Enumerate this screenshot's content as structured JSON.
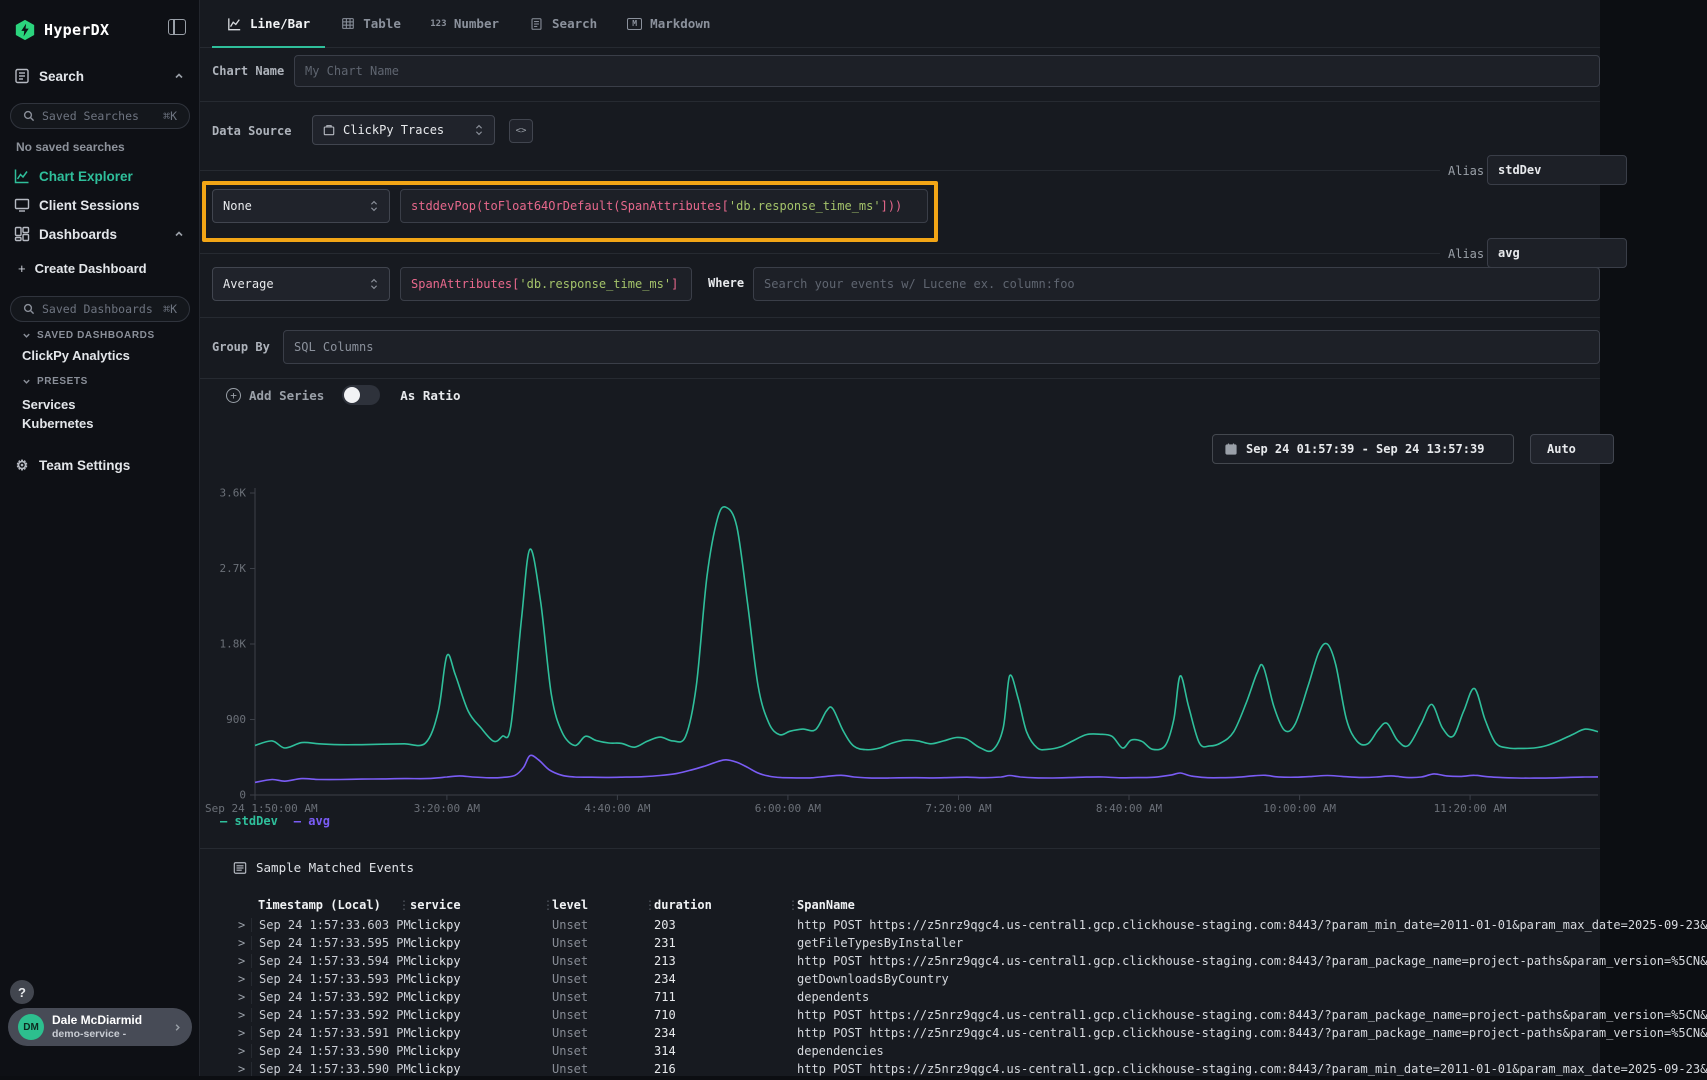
{
  "sidebar": {
    "logo": "HyperDX",
    "search_item": "Search",
    "saved_searches_placeholder": "Saved Searches",
    "shortcut": "⌘K",
    "no_saved_searches": "No saved searches",
    "chart_explorer": "Chart Explorer",
    "client_sessions": "Client Sessions",
    "dashboards": "Dashboards",
    "create_dashboard": "Create Dashboard",
    "saved_dashboards_placeholder": "Saved Dashboards",
    "saved_dashboards_section": "SAVED DASHBOARDS",
    "dashboards_list": [
      "ClickPy Analytics"
    ],
    "presets_section": "PRESETS",
    "presets_list": [
      "Services",
      "Kubernetes"
    ],
    "team_settings": "Team Settings",
    "help_icon": "?",
    "user": {
      "initials": "DM",
      "name": "Dale McDiarmid",
      "org": "demo-service -"
    }
  },
  "icons": {
    "plus": "+",
    "number_tab": "123",
    "markdown_tab": "M",
    "gear": "⚙"
  },
  "tabs": [
    {
      "label": "Line/Bar",
      "active": true
    },
    {
      "label": "Table",
      "active": false
    },
    {
      "label": "Number",
      "active": false
    },
    {
      "label": "Search",
      "active": false
    },
    {
      "label": "Markdown",
      "active": false
    }
  ],
  "editor": {
    "chart_name_label": "Chart Name",
    "chart_name_placeholder": "My Chart Name",
    "data_source_label": "Data Source",
    "data_source_value": "ClickPy Traces",
    "series": [
      {
        "alias_label": "Alias",
        "alias": "stdDev",
        "aggregation": "None",
        "expr_pre": "stddevPop(toFloat64OrDefault(SpanAttributes[",
        "expr_str": "'db.response_time_ms'",
        "expr_post": "]))"
      },
      {
        "alias_label": "Alias",
        "alias": "avg",
        "aggregation": "Average",
        "expr_pre": "SpanAttributes[",
        "expr_str": "'db.response_time_ms'",
        "expr_post": "]",
        "where_label": "Where",
        "where_placeholder": "Search your events w/ Lucene ex. column:foo"
      }
    ],
    "group_by_label": "Group By",
    "group_by_placeholder": "SQL Columns",
    "add_series": "Add Series",
    "as_ratio": "As Ratio",
    "time_range": "Sep 24 01:57:39 - Sep 24 13:57:39",
    "auto_button": "Auto"
  },
  "chart_data": {
    "type": "line",
    "title": "",
    "xlabel": "",
    "ylabel": "",
    "ylim": [
      0,
      3600
    ],
    "grid": false,
    "legend_position": "bottom-left",
    "x_unit": "minutes after Sep 24 1:50:00 AM",
    "x_max": 630,
    "y_ticks": [
      {
        "v": 0,
        "label": "0"
      },
      {
        "v": 900,
        "label": "900"
      },
      {
        "v": 1800,
        "label": "1.8K"
      },
      {
        "v": 2700,
        "label": "2.7K"
      },
      {
        "v": 3600,
        "label": "3.6K"
      }
    ],
    "x_ticks": [
      {
        "min": 0,
        "label": "Sep 24 1:50:00 AM"
      },
      {
        "min": 90,
        "label": "3:20:00 AM"
      },
      {
        "min": 170,
        "label": "4:40:00 AM"
      },
      {
        "min": 250,
        "label": "6:00:00 AM"
      },
      {
        "min": 330,
        "label": "7:20:00 AM"
      },
      {
        "min": 410,
        "label": "8:40:00 AM"
      },
      {
        "min": 490,
        "label": "10:00:00 AM"
      },
      {
        "min": 570,
        "label": "11:20:00 AM"
      }
    ],
    "series": [
      {
        "name": "stdDev",
        "color": "#2fbf9b",
        "points": [
          [
            0,
            590
          ],
          [
            8,
            645
          ],
          [
            14,
            560
          ],
          [
            22,
            625
          ],
          [
            30,
            610
          ],
          [
            40,
            600
          ],
          [
            50,
            600
          ],
          [
            60,
            605
          ],
          [
            70,
            610
          ],
          [
            80,
            620
          ],
          [
            86,
            1000
          ],
          [
            90,
            1660
          ],
          [
            94,
            1430
          ],
          [
            100,
            1000
          ],
          [
            106,
            800
          ],
          [
            112,
            640
          ],
          [
            116,
            700
          ],
          [
            120,
            820
          ],
          [
            125,
            2100
          ],
          [
            129,
            2930
          ],
          [
            134,
            2300
          ],
          [
            139,
            1200
          ],
          [
            144,
            750
          ],
          [
            150,
            590
          ],
          [
            155,
            700
          ],
          [
            160,
            650
          ],
          [
            166,
            620
          ],
          [
            172,
            615
          ],
          [
            178,
            570
          ],
          [
            184,
            640
          ],
          [
            190,
            690
          ],
          [
            196,
            645
          ],
          [
            202,
            700
          ],
          [
            207,
            1300
          ],
          [
            212,
            2600
          ],
          [
            217,
            3300
          ],
          [
            221,
            3430
          ],
          [
            226,
            3200
          ],
          [
            231,
            2300
          ],
          [
            236,
            1300
          ],
          [
            241,
            860
          ],
          [
            246,
            720
          ],
          [
            251,
            760
          ],
          [
            257,
            785
          ],
          [
            263,
            780
          ],
          [
            268,
            1000
          ],
          [
            271,
            1030
          ],
          [
            276,
            760
          ],
          [
            281,
            580
          ],
          [
            287,
            540
          ],
          [
            293,
            560
          ],
          [
            299,
            620
          ],
          [
            305,
            655
          ],
          [
            311,
            645
          ],
          [
            317,
            610
          ],
          [
            323,
            645
          ],
          [
            329,
            685
          ],
          [
            334,
            665
          ],
          [
            340,
            565
          ],
          [
            346,
            535
          ],
          [
            351,
            800
          ],
          [
            354,
            1420
          ],
          [
            358,
            1150
          ],
          [
            362,
            750
          ],
          [
            367,
            560
          ],
          [
            372,
            545
          ],
          [
            378,
            575
          ],
          [
            384,
            650
          ],
          [
            390,
            720
          ],
          [
            396,
            725
          ],
          [
            402,
            700
          ],
          [
            407,
            560
          ],
          [
            411,
            655
          ],
          [
            416,
            640
          ],
          [
            421,
            545
          ],
          [
            427,
            590
          ],
          [
            431,
            900
          ],
          [
            434,
            1420
          ],
          [
            438,
            1050
          ],
          [
            443,
            620
          ],
          [
            448,
            585
          ],
          [
            453,
            620
          ],
          [
            459,
            750
          ],
          [
            465,
            1100
          ],
          [
            470,
            1450
          ],
          [
            473,
            1530
          ],
          [
            478,
            1050
          ],
          [
            483,
            770
          ],
          [
            488,
            850
          ],
          [
            494,
            1300
          ],
          [
            499,
            1700
          ],
          [
            503,
            1800
          ],
          [
            507,
            1550
          ],
          [
            512,
            900
          ],
          [
            517,
            640
          ],
          [
            522,
            610
          ],
          [
            527,
            780
          ],
          [
            531,
            855
          ],
          [
            536,
            650
          ],
          [
            541,
            590
          ],
          [
            547,
            850
          ],
          [
            552,
            1080
          ],
          [
            557,
            800
          ],
          [
            562,
            700
          ],
          [
            567,
            1000
          ],
          [
            572,
            1270
          ],
          [
            577,
            900
          ],
          [
            582,
            620
          ],
          [
            588,
            560
          ],
          [
            594,
            555
          ],
          [
            600,
            560
          ],
          [
            606,
            590
          ],
          [
            612,
            650
          ],
          [
            618,
            720
          ],
          [
            624,
            785
          ],
          [
            630,
            755
          ]
        ]
      },
      {
        "name": "avg",
        "color": "#7a5cf5",
        "points": [
          [
            0,
            150
          ],
          [
            8,
            185
          ],
          [
            14,
            165
          ],
          [
            22,
            195
          ],
          [
            30,
            185
          ],
          [
            40,
            185
          ],
          [
            50,
            190
          ],
          [
            60,
            192
          ],
          [
            70,
            196
          ],
          [
            80,
            195
          ],
          [
            86,
            205
          ],
          [
            90,
            215
          ],
          [
            96,
            228
          ],
          [
            102,
            215
          ],
          [
            110,
            205
          ],
          [
            116,
            210
          ],
          [
            122,
            235
          ],
          [
            126,
            330
          ],
          [
            129,
            470
          ],
          [
            133,
            420
          ],
          [
            138,
            300
          ],
          [
            144,
            235
          ],
          [
            150,
            215
          ],
          [
            158,
            212
          ],
          [
            166,
            210
          ],
          [
            174,
            213
          ],
          [
            182,
            218
          ],
          [
            190,
            232
          ],
          [
            198,
            258
          ],
          [
            205,
            300
          ],
          [
            211,
            345
          ],
          [
            217,
            398
          ],
          [
            221,
            420
          ],
          [
            226,
            390
          ],
          [
            231,
            330
          ],
          [
            236,
            262
          ],
          [
            241,
            225
          ],
          [
            247,
            208
          ],
          [
            254,
            204
          ],
          [
            261,
            205
          ],
          [
            268,
            222
          ],
          [
            275,
            235
          ],
          [
            281,
            215
          ],
          [
            288,
            204
          ],
          [
            295,
            202
          ],
          [
            302,
            205
          ],
          [
            310,
            206
          ],
          [
            318,
            204
          ],
          [
            326,
            208
          ],
          [
            334,
            212
          ],
          [
            342,
            206
          ],
          [
            350,
            215
          ],
          [
            354,
            232
          ],
          [
            359,
            215
          ],
          [
            366,
            205
          ],
          [
            374,
            203
          ],
          [
            382,
            207
          ],
          [
            390,
            213
          ],
          [
            398,
            214
          ],
          [
            406,
            205
          ],
          [
            414,
            208
          ],
          [
            422,
            212
          ],
          [
            430,
            240
          ],
          [
            434,
            262
          ],
          [
            439,
            228
          ],
          [
            446,
            208
          ],
          [
            453,
            206
          ],
          [
            461,
            212
          ],
          [
            469,
            230
          ],
          [
            474,
            235
          ],
          [
            480,
            216
          ],
          [
            488,
            212
          ],
          [
            496,
            222
          ],
          [
            503,
            232
          ],
          [
            510,
            222
          ],
          [
            518,
            210
          ],
          [
            526,
            214
          ],
          [
            533,
            228
          ],
          [
            540,
            210
          ],
          [
            547,
            214
          ],
          [
            553,
            252
          ],
          [
            559,
            228
          ],
          [
            566,
            222
          ],
          [
            572,
            235
          ],
          [
            578,
            218
          ],
          [
            585,
            208
          ],
          [
            592,
            203
          ],
          [
            600,
            201
          ],
          [
            608,
            204
          ],
          [
            616,
            210
          ],
          [
            624,
            214
          ],
          [
            630,
            216
          ]
        ]
      }
    ]
  },
  "events": {
    "title": "Sample Matched Events",
    "expand_icon": ">",
    "col_handle": "⋮",
    "columns": [
      "Timestamp (Local)",
      "service",
      "level",
      "duration",
      "SpanName"
    ],
    "rows": [
      {
        "ts": "Sep 24 1:57:33.603 PM",
        "service": "clickpy",
        "level": "Unset",
        "duration": "203",
        "span": "http POST https://z5nrz9qgc4.us-central1.gcp.clickhouse-staging.com:8443/?param_min_date=2011-01-01&param_max_date=2025-09-23&"
      },
      {
        "ts": "Sep 24 1:57:33.595 PM",
        "service": "clickpy",
        "level": "Unset",
        "duration": "231",
        "span": "getFileTypesByInstaller"
      },
      {
        "ts": "Sep 24 1:57:33.594 PM",
        "service": "clickpy",
        "level": "Unset",
        "duration": "213",
        "span": "http POST https://z5nrz9qgc4.us-central1.gcp.clickhouse-staging.com:8443/?param_package_name=project-paths&param_version=%5CN&"
      },
      {
        "ts": "Sep 24 1:57:33.593 PM",
        "service": "clickpy",
        "level": "Unset",
        "duration": "234",
        "span": "getDownloadsByCountry"
      },
      {
        "ts": "Sep 24 1:57:33.592 PM",
        "service": "clickpy",
        "level": "Unset",
        "duration": "711",
        "span": "dependents"
      },
      {
        "ts": "Sep 24 1:57:33.592 PM",
        "service": "clickpy",
        "level": "Unset",
        "duration": "710",
        "span": "http POST https://z5nrz9qgc4.us-central1.gcp.clickhouse-staging.com:8443/?param_package_name=project-paths&param_version=%5CN&"
      },
      {
        "ts": "Sep 24 1:57:33.591 PM",
        "service": "clickpy",
        "level": "Unset",
        "duration": "234",
        "span": "http POST https://z5nrz9qgc4.us-central1.gcp.clickhouse-staging.com:8443/?param_package_name=project-paths&param_version=%5CN&"
      },
      {
        "ts": "Sep 24 1:57:33.590 PM",
        "service": "clickpy",
        "level": "Unset",
        "duration": "314",
        "span": "dependencies"
      },
      {
        "ts": "Sep 24 1:57:33.590 PM",
        "service": "clickpy",
        "level": "Unset",
        "duration": "216",
        "span": "http POST https://z5nrz9qgc4.us-central1.gcp.clickhouse-staging.com:8443/?param_min_date=2011-01-01&param_max_date=2025-09-23&"
      }
    ]
  }
}
